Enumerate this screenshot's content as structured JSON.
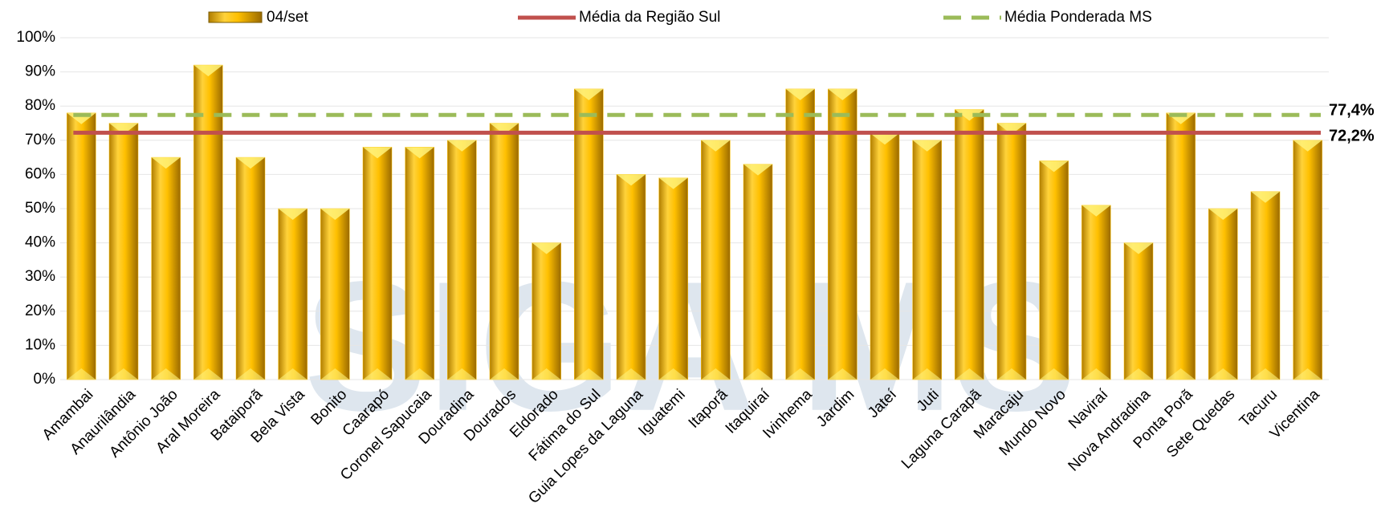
{
  "chart_data": {
    "type": "bar",
    "watermark": "SIGA MS",
    "categories": [
      "Amambai",
      "Anaurilândia",
      "Antônio João",
      "Aral Moreira",
      "Bataiporã",
      "Bela Vista",
      "Bonito",
      "Caarapó",
      "Coronel Sapucaia",
      "Douradina",
      "Dourados",
      "Eldorado",
      "Fátima do Sul",
      "Guia Lopes da Laguna",
      "Iguatemi",
      "Itaporã",
      "Itaquiraí",
      "Ivinhema",
      "Jardim",
      "Jateí",
      "Juti",
      "Laguna Carapã",
      "Maracaju",
      "Mundo Novo",
      "Naviraí",
      "Nova Andradina",
      "Ponta Porã",
      "Sete Quedas",
      "Tacuru",
      "Vicentina"
    ],
    "series": [
      {
        "name": "04/set",
        "color": "#ffc000",
        "values": [
          78,
          75,
          65,
          92,
          65,
          50,
          50,
          68,
          68,
          70,
          75,
          40,
          85,
          60,
          59,
          70,
          63,
          85,
          85,
          72,
          70,
          79,
          75,
          64,
          51,
          40,
          78,
          50,
          55,
          70
        ]
      }
    ],
    "reference_lines": [
      {
        "name": "Média da Região Sul",
        "value": 72.2,
        "label": "72,2%",
        "color": "#c0504d",
        "dashed": false
      },
      {
        "name": "Média Ponderada MS",
        "value": 77.4,
        "label": "77,4%",
        "color": "#9bbb59",
        "dashed": true
      }
    ],
    "ylim": [
      0,
      100
    ],
    "yticks": [
      {
        "value": 0,
        "label": "0%"
      },
      {
        "value": 10,
        "label": "10%"
      },
      {
        "value": 20,
        "label": "20%"
      },
      {
        "value": 30,
        "label": "30%"
      },
      {
        "value": 40,
        "label": "40%"
      },
      {
        "value": 50,
        "label": "50%"
      },
      {
        "value": 60,
        "label": "60%"
      },
      {
        "value": 70,
        "label": "70%"
      },
      {
        "value": 80,
        "label": "80%"
      },
      {
        "value": 90,
        "label": "90%"
      },
      {
        "value": 100,
        "label": "100%"
      }
    ],
    "grid": true
  }
}
